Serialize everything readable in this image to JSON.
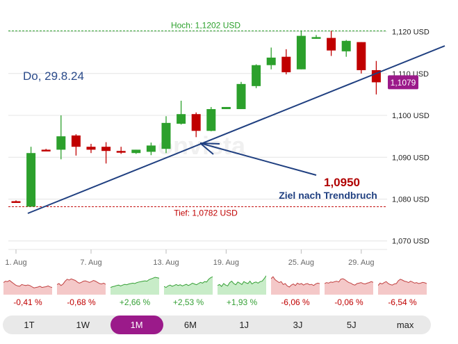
{
  "chart_data": {
    "type": "candlestick",
    "date_label": "Do, 29.8.24",
    "high_label": "Hoch: 1,1202 USD",
    "low_label": "Tief: 1,0782 USD",
    "high": 1.1202,
    "low": 1.0782,
    "last_price_label": "1,1079",
    "target_value": "1,0950",
    "target_text": "Ziel nach Trendbruch",
    "watermark": "onvista",
    "ylim": [
      1.067,
      1.126
    ],
    "yticks": [
      {
        "v": 1.12,
        "label": "1,120 USD"
      },
      {
        "v": 1.11,
        "label": "1,110 USD"
      },
      {
        "v": 1.1,
        "label": "1,100 USD"
      },
      {
        "v": 1.09,
        "label": "1,090 USD"
      },
      {
        "v": 1.08,
        "label": "1,080 USD"
      },
      {
        "v": 1.07,
        "label": "1,070 USD"
      }
    ],
    "xticks": [
      {
        "i": 0,
        "label": "1. Aug"
      },
      {
        "i": 5,
        "label": "7. Aug"
      },
      {
        "i": 10,
        "label": "13. Aug"
      },
      {
        "i": 14,
        "label": "19. Aug"
      },
      {
        "i": 19,
        "label": "25. Aug"
      },
      {
        "i": 23,
        "label": "29. Aug"
      }
    ],
    "candles": [
      {
        "o": 1.0795,
        "h": 1.0797,
        "l": 1.0791,
        "c": 1.0792
      },
      {
        "o": 1.0782,
        "h": 1.0925,
        "l": 1.0782,
        "c": 1.091
      },
      {
        "o": 1.0918,
        "h": 1.092,
        "l": 1.0915,
        "c": 1.0917
      },
      {
        "o": 1.0918,
        "h": 1.1,
        "l": 1.0895,
        "c": 1.095
      },
      {
        "o": 1.0952,
        "h": 1.0955,
        "l": 1.0904,
        "c": 1.0925
      },
      {
        "o": 1.0925,
        "h": 1.0932,
        "l": 1.091,
        "c": 1.0918
      },
      {
        "o": 1.0925,
        "h": 1.0936,
        "l": 1.0885,
        "c": 1.0915
      },
      {
        "o": 1.0915,
        "h": 1.0925,
        "l": 1.0908,
        "c": 1.0912
      },
      {
        "o": 1.091,
        "h": 1.0918,
        "l": 1.0908,
        "c": 1.0918
      },
      {
        "o": 1.0913,
        "h": 1.0935,
        "l": 1.0905,
        "c": 1.0928
      },
      {
        "o": 1.092,
        "h": 1.0998,
        "l": 1.091,
        "c": 1.0982
      },
      {
        "o": 1.098,
        "h": 1.1035,
        "l": 1.0978,
        "c": 1.1003
      },
      {
        "o": 1.1003,
        "h": 1.1007,
        "l": 1.0948,
        "c": 1.0963
      },
      {
        "o": 1.0963,
        "h": 1.102,
        "l": 1.0962,
        "c": 1.1015
      },
      {
        "o": 1.1015,
        "h": 1.102,
        "l": 1.1015,
        "c": 1.102
      },
      {
        "o": 1.1015,
        "h": 1.108,
        "l": 1.1015,
        "c": 1.1075
      },
      {
        "o": 1.107,
        "h": 1.1122,
        "l": 1.1065,
        "c": 1.112
      },
      {
        "o": 1.112,
        "h": 1.1162,
        "l": 1.111,
        "c": 1.1138
      },
      {
        "o": 1.114,
        "h": 1.1158,
        "l": 1.1098,
        "c": 1.1103
      },
      {
        "o": 1.111,
        "h": 1.1202,
        "l": 1.111,
        "c": 1.119
      },
      {
        "o": 1.1183,
        "h": 1.1192,
        "l": 1.1183,
        "c": 1.1187
      },
      {
        "o": 1.1185,
        "h": 1.1202,
        "l": 1.1142,
        "c": 1.1155
      },
      {
        "o": 1.1153,
        "h": 1.118,
        "l": 1.114,
        "c": 1.1178
      },
      {
        "o": 1.1175,
        "h": 1.1175,
        "l": 1.11,
        "c": 1.1108
      },
      {
        "o": 1.1108,
        "h": 1.113,
        "l": 1.105,
        "c": 1.1079
      }
    ]
  },
  "performance": [
    {
      "period": "1T",
      "change": "-0,41 %",
      "trend": "down",
      "values": [
        0.55,
        0.62,
        0.6,
        0.66,
        0.58,
        0.5,
        0.42,
        0.38,
        0.36,
        0.45,
        0.42,
        0.4,
        0.43,
        0.4,
        0.34,
        0.28,
        0.3,
        0.32,
        0.36,
        0.3,
        0.32,
        0.34,
        0.38,
        0.33,
        0.3
      ]
    },
    {
      "period": "1W",
      "change": "-0,68 %",
      "trend": "down",
      "values": [
        0.45,
        0.5,
        0.4,
        0.48,
        0.62,
        0.72,
        0.68,
        0.74,
        0.7,
        0.66,
        0.58,
        0.52,
        0.56,
        0.62,
        0.64,
        0.6,
        0.56,
        0.6,
        0.66,
        0.62,
        0.56,
        0.5,
        0.48,
        0.52,
        0.46
      ]
    },
    {
      "period": "1M",
      "change": "+2,66 %",
      "trend": "up",
      "values": [
        0.3,
        0.34,
        0.36,
        0.4,
        0.42,
        0.38,
        0.42,
        0.46,
        0.44,
        0.48,
        0.5,
        0.52,
        0.5,
        0.55,
        0.58,
        0.6,
        0.62,
        0.64,
        0.62,
        0.7,
        0.74,
        0.78,
        0.82,
        0.8,
        0.78
      ]
    },
    {
      "period": "6M",
      "change": "+2,53 %",
      "trend": "up",
      "values": [
        0.35,
        0.3,
        0.38,
        0.42,
        0.36,
        0.4,
        0.45,
        0.4,
        0.44,
        0.38,
        0.42,
        0.46,
        0.4,
        0.45,
        0.52,
        0.48,
        0.44,
        0.5,
        0.56,
        0.52,
        0.6,
        0.58,
        0.72,
        0.8,
        0.85
      ]
    },
    {
      "period": "1J",
      "change": "+1,93 %",
      "trend": "up",
      "values": [
        0.4,
        0.45,
        0.35,
        0.5,
        0.42,
        0.38,
        0.55,
        0.62,
        0.5,
        0.44,
        0.58,
        0.52,
        0.45,
        0.6,
        0.54,
        0.5,
        0.62,
        0.48,
        0.55,
        0.58,
        0.52,
        0.6,
        0.62,
        0.75,
        0.9
      ]
    },
    {
      "period": "3J",
      "change": "-6,06 %",
      "trend": "down",
      "values": [
        0.75,
        0.85,
        0.7,
        0.62,
        0.55,
        0.6,
        0.45,
        0.5,
        0.38,
        0.32,
        0.42,
        0.48,
        0.4,
        0.52,
        0.46,
        0.5,
        0.42,
        0.48,
        0.5,
        0.44,
        0.46,
        0.4,
        0.48,
        0.52,
        0.5
      ]
    },
    {
      "period": "5J",
      "change": "-0,06 %",
      "trend": "down",
      "values": [
        0.5,
        0.55,
        0.52,
        0.58,
        0.56,
        0.6,
        0.62,
        0.58,
        0.72,
        0.75,
        0.7,
        0.62,
        0.55,
        0.52,
        0.45,
        0.42,
        0.5,
        0.52,
        0.55,
        0.5,
        0.48,
        0.52,
        0.55,
        0.6,
        0.56
      ]
    },
    {
      "period": "max",
      "change": "-6,54 %",
      "trend": "down",
      "values": [
        0.4,
        0.52,
        0.48,
        0.55,
        0.6,
        0.5,
        0.45,
        0.42,
        0.48,
        0.5,
        0.65,
        0.72,
        0.68,
        0.62,
        0.6,
        0.55,
        0.62,
        0.58,
        0.52,
        0.55,
        0.5,
        0.52,
        0.56,
        0.54,
        0.5
      ]
    }
  ],
  "tabs": [
    {
      "label": "1T",
      "active": false
    },
    {
      "label": "1W",
      "active": false
    },
    {
      "label": "1M",
      "active": true
    },
    {
      "label": "6M",
      "active": false
    },
    {
      "label": "1J",
      "active": false
    },
    {
      "label": "3J",
      "active": false
    },
    {
      "label": "5J",
      "active": false
    },
    {
      "label": "max",
      "active": false
    }
  ],
  "colors": {
    "up": "#2ca02c",
    "down": "#c00000",
    "trendline": "#1f3f80",
    "badge": "#9b1a8a",
    "target": "#b00000",
    "grid": "#e4e4e4",
    "axis_text": "#222222",
    "spark_up_fill": "#c8ecc8",
    "spark_up_line": "#35a035",
    "spark_down_fill": "#f4c8c8",
    "spark_down_line": "#c04040"
  }
}
